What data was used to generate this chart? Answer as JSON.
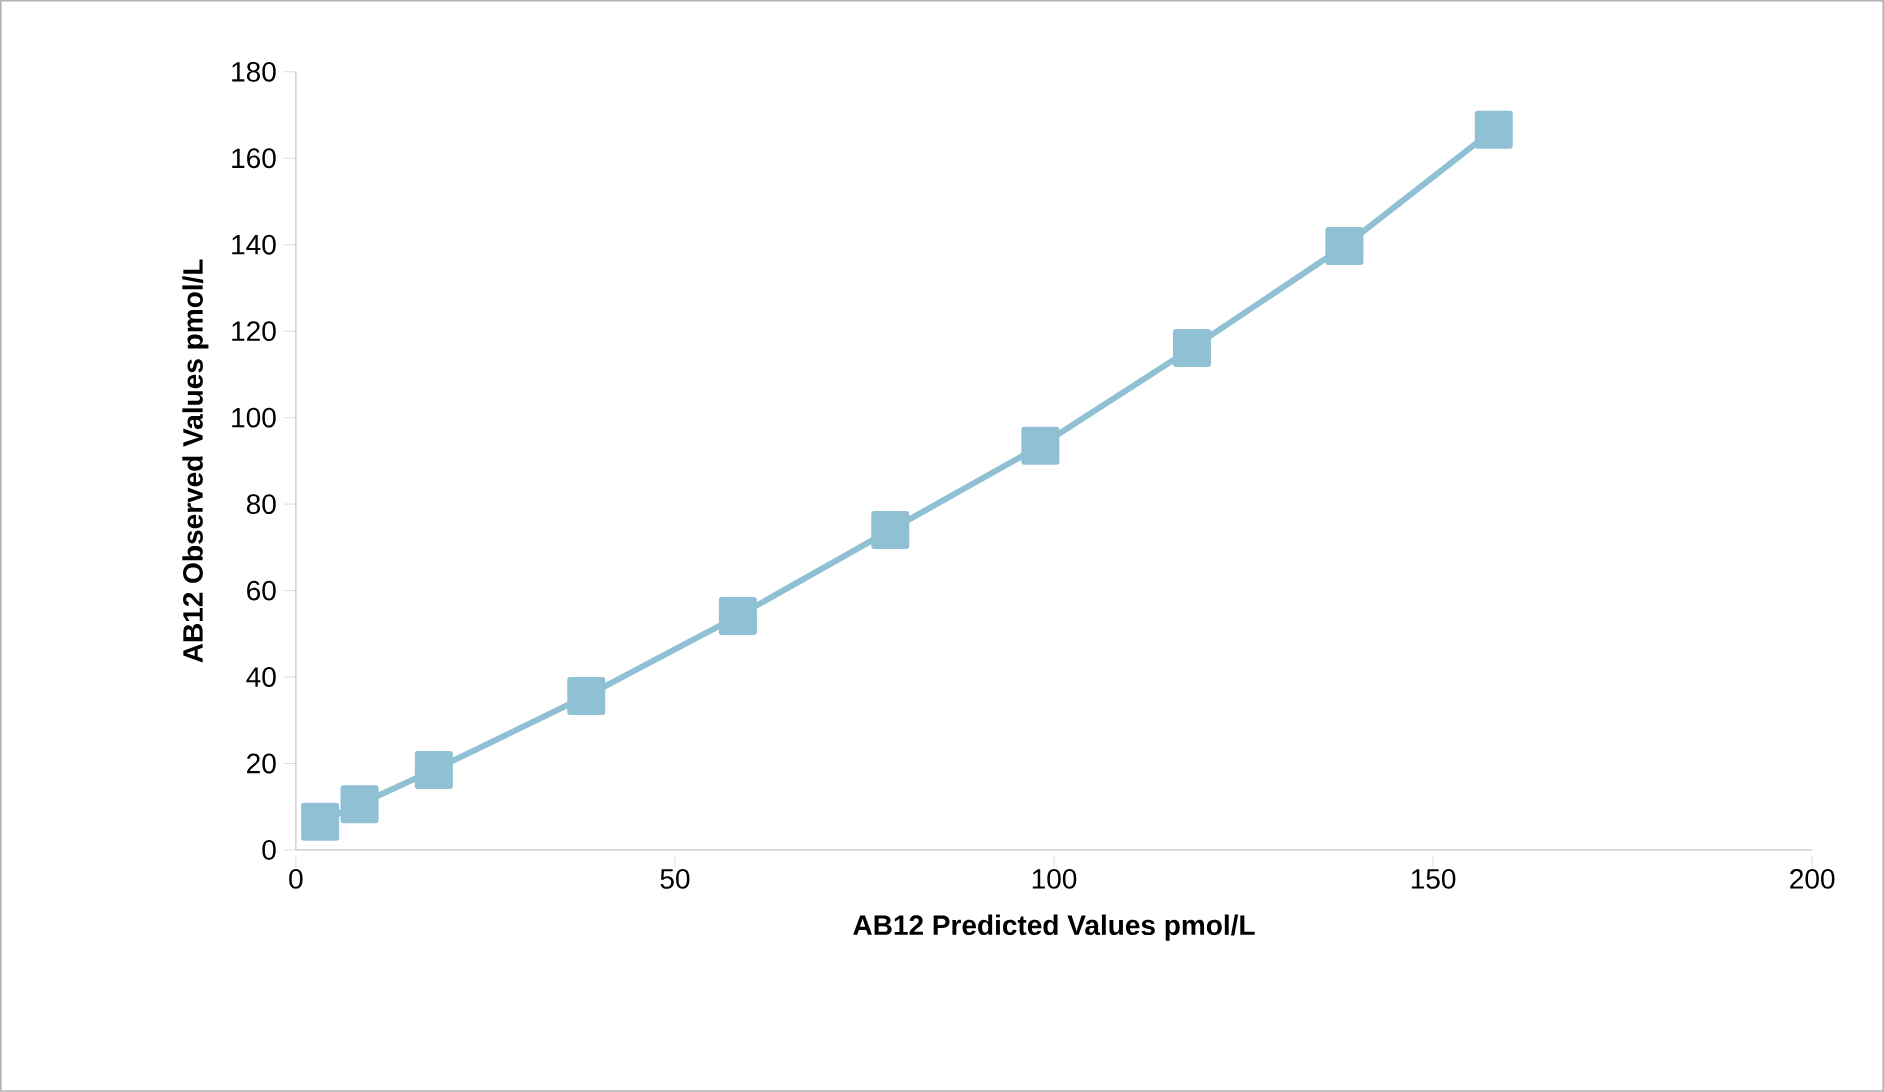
{
  "chart_data": {
    "type": "line",
    "xlabel": "AB12 Predicted Values pmol/L",
    "ylabel": "AB12 Observed Values  pmol/L",
    "x": [
      3.2,
      8.4,
      18.2,
      38.3,
      58.3,
      78.4,
      98.2,
      118.2,
      138.3,
      158.0
    ],
    "series": [
      {
        "color": "#8fc0d3",
        "values": [
          6.5,
          10.6,
          18.5,
          35.6,
          54.1,
          74.0,
          93.5,
          116.1,
          139.7,
          166.6
        ]
      }
    ],
    "xlim": [
      0,
      200
    ],
    "ylim": [
      0,
      180
    ],
    "xticks": [
      0,
      50,
      100,
      150,
      200
    ],
    "yticks": [
      0,
      20,
      40,
      60,
      80,
      100,
      120,
      140,
      160,
      180
    ],
    "grid": false,
    "marker": "square",
    "line_style": "solid"
  }
}
